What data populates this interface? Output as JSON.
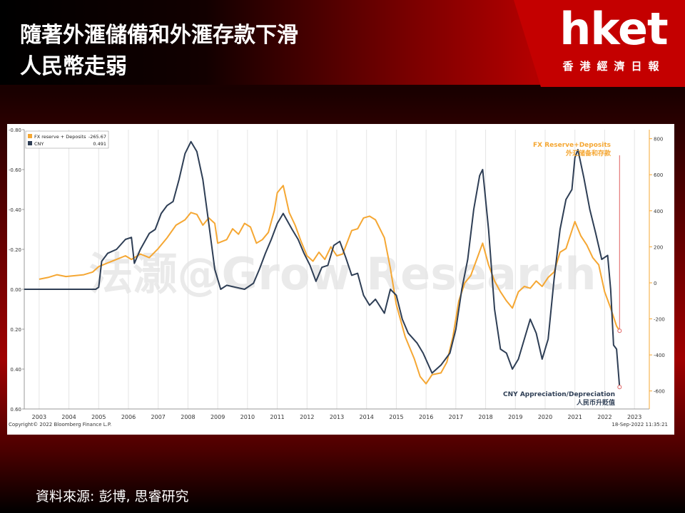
{
  "title": {
    "line1": "隨著外滙儲備和外滙存款下滑",
    "line2": "人民幣走弱"
  },
  "logo": {
    "text": "hket",
    "subtitle": "香港經濟日報"
  },
  "source": "資料來源: 彭博, 思睿研究",
  "chart_data": {
    "type": "line",
    "copyright": "Copyright© 2022 Bloomberg Finance L.P.",
    "timestamp": "18-Sep-2022 11:35:21",
    "watermark": "法灏@Grow Research",
    "x_ticks": [
      "2003",
      "2004",
      "2005",
      "2006",
      "2007",
      "2008",
      "2009",
      "2010",
      "2011",
      "2012",
      "2013",
      "2014",
      "2015",
      "2016",
      "2017",
      "2018",
      "2019",
      "2020",
      "2021",
      "2022",
      "2023"
    ],
    "xlim": [
      2002.5,
      2023.5
    ],
    "left_axis": {
      "inverted": true,
      "ylim": [
        -0.8,
        0.6
      ],
      "ticks": [
        "-0.80",
        "-0.60",
        "-0.40",
        "-0.20",
        "0.00",
        "0.20",
        "0.40",
        "0.60"
      ],
      "tick_values": [
        -0.8,
        -0.6,
        -0.4,
        -0.2,
        0.0,
        0.2,
        0.4,
        0.6
      ]
    },
    "right_axis": {
      "ylim": [
        -700,
        850
      ],
      "ticks": [
        "800",
        "600",
        "400",
        "200",
        "0",
        "-200",
        "-400",
        "-600"
      ],
      "tick_values": [
        800,
        600,
        400,
        200,
        0,
        -200,
        -400,
        -600
      ]
    },
    "legend": {
      "placement": "top-left",
      "entries": [
        {
          "label": "FX reserve + Deposits",
          "value": "-265.67",
          "color": "#f5a733"
        },
        {
          "label": "CNY",
          "value": "0.491",
          "color": "#2e3e55"
        }
      ]
    },
    "annotations": {
      "fx_en": "FX Reserve+Deposits",
      "fx_cn": "外汇储备和存款",
      "cny_en": "CNY Appreciation/Depreciation",
      "cny_cn": "人民币升贬值"
    },
    "series": [
      {
        "name": "FX reserve + Deposits",
        "axis": "right",
        "color": "#f5a733",
        "points": [
          [
            2003.0,
            20
          ],
          [
            2003.3,
            30
          ],
          [
            2003.6,
            45
          ],
          [
            2003.9,
            35
          ],
          [
            2004.2,
            40
          ],
          [
            2004.5,
            45
          ],
          [
            2004.8,
            60
          ],
          [
            2005.0,
            90
          ],
          [
            2005.3,
            110
          ],
          [
            2005.6,
            130
          ],
          [
            2005.9,
            150
          ],
          [
            2006.1,
            130
          ],
          [
            2006.4,
            160
          ],
          [
            2006.7,
            140
          ],
          [
            2007.0,
            190
          ],
          [
            2007.3,
            250
          ],
          [
            2007.6,
            320
          ],
          [
            2007.9,
            350
          ],
          [
            2008.1,
            390
          ],
          [
            2008.3,
            380
          ],
          [
            2008.5,
            320
          ],
          [
            2008.7,
            360
          ],
          [
            2008.9,
            330
          ],
          [
            2009.0,
            220
          ],
          [
            2009.3,
            240
          ],
          [
            2009.5,
            300
          ],
          [
            2009.7,
            270
          ],
          [
            2009.9,
            330
          ],
          [
            2010.1,
            310
          ],
          [
            2010.3,
            220
          ],
          [
            2010.5,
            240
          ],
          [
            2010.7,
            280
          ],
          [
            2010.9,
            400
          ],
          [
            2011.0,
            500
          ],
          [
            2011.2,
            540
          ],
          [
            2011.4,
            390
          ],
          [
            2011.6,
            320
          ],
          [
            2011.8,
            230
          ],
          [
            2012.0,
            150
          ],
          [
            2012.2,
            120
          ],
          [
            2012.4,
            170
          ],
          [
            2012.6,
            130
          ],
          [
            2012.8,
            200
          ],
          [
            2013.0,
            150
          ],
          [
            2013.2,
            160
          ],
          [
            2013.5,
            290
          ],
          [
            2013.7,
            300
          ],
          [
            2013.9,
            360
          ],
          [
            2014.1,
            370
          ],
          [
            2014.3,
            350
          ],
          [
            2014.6,
            250
          ],
          [
            2014.8,
            80
          ],
          [
            2015.0,
            -120
          ],
          [
            2015.3,
            -300
          ],
          [
            2015.6,
            -420
          ],
          [
            2015.8,
            -520
          ],
          [
            2016.0,
            -560
          ],
          [
            2016.2,
            -510
          ],
          [
            2016.5,
            -500
          ],
          [
            2016.7,
            -440
          ],
          [
            2016.9,
            -300
          ],
          [
            2017.1,
            -100
          ],
          [
            2017.3,
            0
          ],
          [
            2017.5,
            40
          ],
          [
            2017.7,
            130
          ],
          [
            2017.9,
            220
          ],
          [
            2018.1,
            100
          ],
          [
            2018.3,
            10
          ],
          [
            2018.5,
            -50
          ],
          [
            2018.7,
            -100
          ],
          [
            2018.9,
            -140
          ],
          [
            2019.1,
            -50
          ],
          [
            2019.3,
            -20
          ],
          [
            2019.5,
            -30
          ],
          [
            2019.7,
            10
          ],
          [
            2019.9,
            -20
          ],
          [
            2020.1,
            30
          ],
          [
            2020.3,
            60
          ],
          [
            2020.5,
            170
          ],
          [
            2020.7,
            190
          ],
          [
            2020.9,
            290
          ],
          [
            2021.0,
            340
          ],
          [
            2021.2,
            260
          ],
          [
            2021.4,
            210
          ],
          [
            2021.6,
            140
          ],
          [
            2021.8,
            100
          ],
          [
            2022.0,
            -50
          ],
          [
            2022.2,
            -140
          ],
          [
            2022.4,
            -240
          ],
          [
            2022.5,
            -266
          ]
        ]
      },
      {
        "name": "CNY",
        "axis": "left",
        "color": "#2e3e55",
        "points": [
          [
            2002.5,
            0.0
          ],
          [
            2003.0,
            0.0
          ],
          [
            2003.3,
            0.0
          ],
          [
            2003.5,
            0.0
          ],
          [
            2004.0,
            0.0
          ],
          [
            2004.5,
            0.0
          ],
          [
            2004.9,
            0.0
          ],
          [
            2005.0,
            -0.01
          ],
          [
            2005.1,
            -0.14
          ],
          [
            2005.3,
            -0.18
          ],
          [
            2005.6,
            -0.2
          ],
          [
            2005.9,
            -0.25
          ],
          [
            2006.1,
            -0.26
          ],
          [
            2006.2,
            -0.13
          ],
          [
            2006.4,
            -0.2
          ],
          [
            2006.7,
            -0.28
          ],
          [
            2006.9,
            -0.3
          ],
          [
            2007.1,
            -0.38
          ],
          [
            2007.3,
            -0.42
          ],
          [
            2007.5,
            -0.44
          ],
          [
            2007.7,
            -0.55
          ],
          [
            2007.9,
            -0.68
          ],
          [
            2008.1,
            -0.74
          ],
          [
            2008.3,
            -0.69
          ],
          [
            2008.5,
            -0.55
          ],
          [
            2008.7,
            -0.33
          ],
          [
            2008.9,
            -0.1
          ],
          [
            2009.1,
            0.0
          ],
          [
            2009.3,
            -0.02
          ],
          [
            2009.6,
            -0.01
          ],
          [
            2009.9,
            0.0
          ],
          [
            2010.2,
            -0.03
          ],
          [
            2010.4,
            -0.1
          ],
          [
            2010.6,
            -0.18
          ],
          [
            2010.8,
            -0.25
          ],
          [
            2011.0,
            -0.33
          ],
          [
            2011.2,
            -0.38
          ],
          [
            2011.5,
            -0.3
          ],
          [
            2011.7,
            -0.25
          ],
          [
            2011.9,
            -0.18
          ],
          [
            2012.1,
            -0.12
          ],
          [
            2012.3,
            -0.04
          ],
          [
            2012.5,
            -0.11
          ],
          [
            2012.7,
            -0.12
          ],
          [
            2012.9,
            -0.22
          ],
          [
            2013.1,
            -0.24
          ],
          [
            2013.3,
            -0.16
          ],
          [
            2013.5,
            -0.07
          ],
          [
            2013.7,
            -0.08
          ],
          [
            2013.9,
            0.03
          ],
          [
            2014.1,
            0.08
          ],
          [
            2014.3,
            0.05
          ],
          [
            2014.6,
            0.12
          ],
          [
            2014.8,
            0.0
          ],
          [
            2015.0,
            0.03
          ],
          [
            2015.2,
            0.15
          ],
          [
            2015.4,
            0.22
          ],
          [
            2015.7,
            0.27
          ],
          [
            2015.9,
            0.32
          ],
          [
            2016.2,
            0.42
          ],
          [
            2016.5,
            0.38
          ],
          [
            2016.8,
            0.32
          ],
          [
            2017.0,
            0.2
          ],
          [
            2017.2,
            0.0
          ],
          [
            2017.4,
            -0.15
          ],
          [
            2017.6,
            -0.4
          ],
          [
            2017.8,
            -0.57
          ],
          [
            2017.9,
            -0.6
          ],
          [
            2018.1,
            -0.3
          ],
          [
            2018.3,
            0.1
          ],
          [
            2018.5,
            0.3
          ],
          [
            2018.7,
            0.32
          ],
          [
            2018.9,
            0.4
          ],
          [
            2019.1,
            0.35
          ],
          [
            2019.3,
            0.25
          ],
          [
            2019.5,
            0.15
          ],
          [
            2019.7,
            0.22
          ],
          [
            2019.9,
            0.35
          ],
          [
            2020.1,
            0.25
          ],
          [
            2020.3,
            -0.05
          ],
          [
            2020.5,
            -0.3
          ],
          [
            2020.7,
            -0.45
          ],
          [
            2020.9,
            -0.5
          ],
          [
            2021.0,
            -0.66
          ],
          [
            2021.1,
            -0.7
          ],
          [
            2021.3,
            -0.56
          ],
          [
            2021.5,
            -0.4
          ],
          [
            2021.7,
            -0.28
          ],
          [
            2021.9,
            -0.15
          ],
          [
            2022.1,
            -0.17
          ],
          [
            2022.2,
            0.0
          ],
          [
            2022.3,
            0.28
          ],
          [
            2022.4,
            0.3
          ],
          [
            2022.5,
            0.49
          ]
        ]
      }
    ]
  }
}
